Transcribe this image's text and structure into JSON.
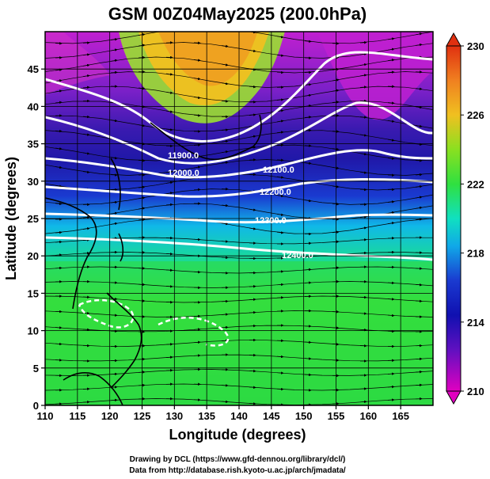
{
  "title": "GSM 00Z04May2025 (200.0hPa)",
  "x_axis": {
    "label": "Longitude (degrees)",
    "range": [
      110,
      170
    ],
    "ticks": [
      110,
      115,
      120,
      125,
      130,
      135,
      140,
      145,
      150,
      155,
      160,
      165
    ]
  },
  "y_axis": {
    "label": "Latitude  (degrees)",
    "range": [
      0,
      50
    ],
    "ticks": [
      0,
      5,
      10,
      15,
      20,
      25,
      30,
      35,
      40,
      45
    ]
  },
  "colorbar": {
    "range": [
      210,
      230
    ],
    "ticks": [
      210,
      214,
      218,
      222,
      226,
      230
    ],
    "colors": [
      "#e000c0",
      "#6010c0",
      "#1010b0",
      "#1a3ad0",
      "#10c8e0",
      "#10e0a0",
      "#30e040",
      "#8ae020",
      "#f0c020",
      "#f08020",
      "#e03010"
    ]
  },
  "contours": [
    {
      "label": "11900.0"
    },
    {
      "label": "12000.0"
    },
    {
      "label": "12100.0"
    },
    {
      "label": "12200.0"
    },
    {
      "label": "12300.0"
    },
    {
      "label": "12400.0"
    }
  ],
  "credits": [
    "Drawing by DCL (https://www.gfd-dennou.org/library/dcl/)",
    "Data from http://database.rish.kyoto-u.ac.jp/arch/jmadata/"
  ]
}
